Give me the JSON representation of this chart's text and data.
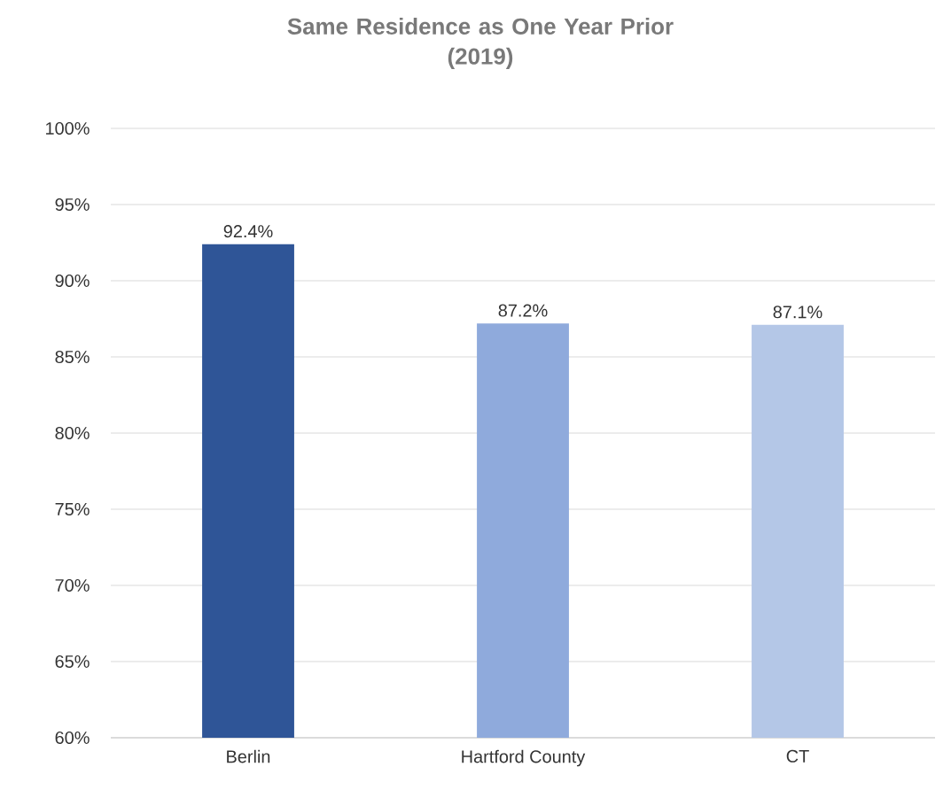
{
  "chart_data": {
    "type": "bar",
    "title": "Same Residence as One Year Prior\n(2019)",
    "categories": [
      "Berlin",
      "Hartford County",
      "CT"
    ],
    "values": [
      92.4,
      87.2,
      87.1
    ],
    "colors": [
      "#2f5597",
      "#8faadc",
      "#b4c7e7"
    ],
    "value_labels": [
      "92.4%",
      "87.2%",
      "87.1%"
    ],
    "ylim": [
      60,
      100
    ],
    "yticks": [
      {
        "value": 60,
        "label": "60%"
      },
      {
        "value": 65,
        "label": "65%"
      },
      {
        "value": 70,
        "label": "70%"
      },
      {
        "value": 75,
        "label": "75%"
      },
      {
        "value": 80,
        "label": "80%"
      },
      {
        "value": 85,
        "label": "85%"
      },
      {
        "value": 90,
        "label": "90%"
      },
      {
        "value": 95,
        "label": "95%"
      },
      {
        "value": 100,
        "label": "100%"
      }
    ],
    "grid": "y"
  }
}
